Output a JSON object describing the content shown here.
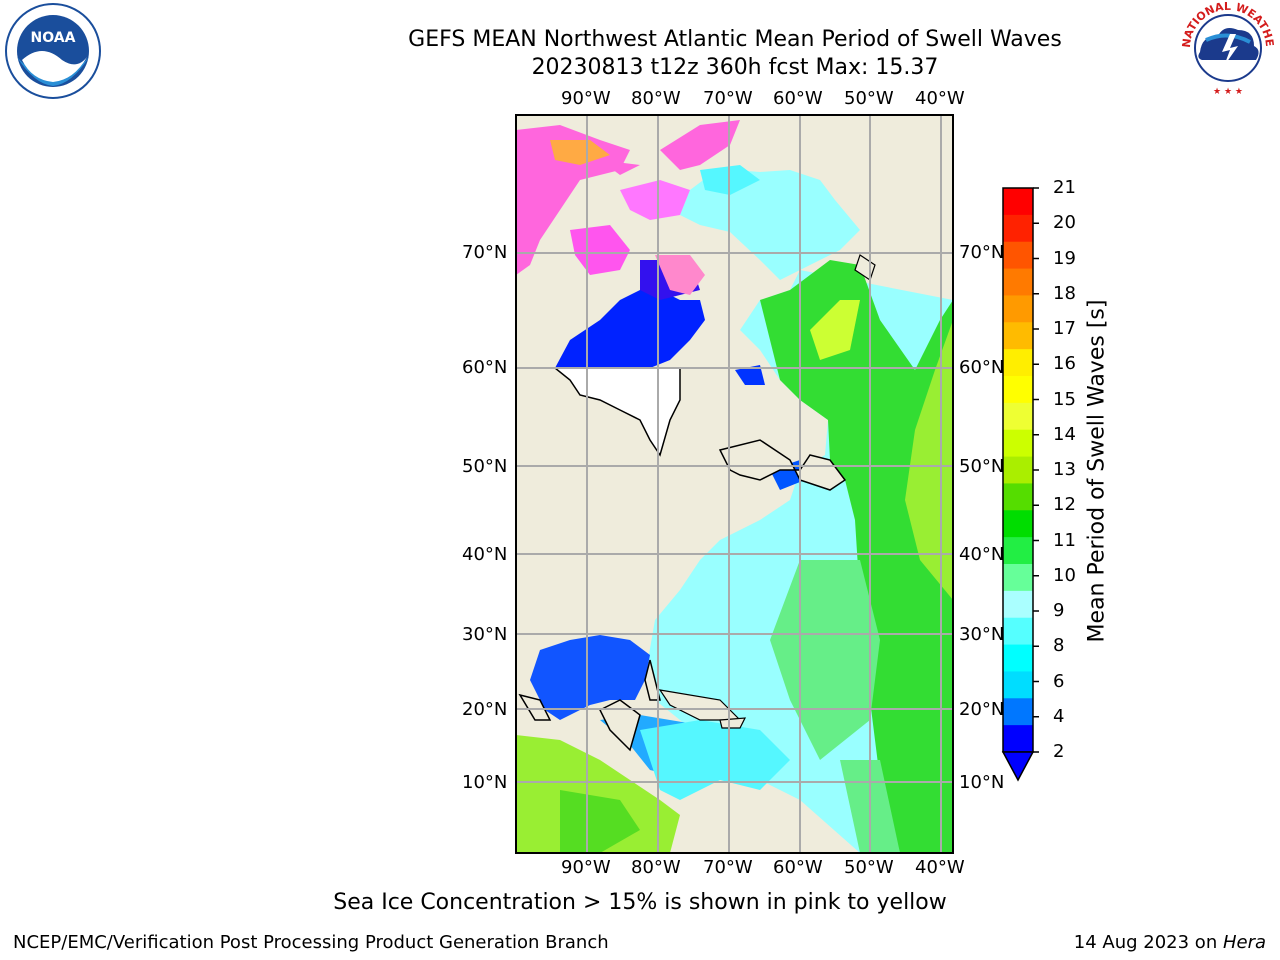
{
  "header": {
    "title": "GEFS MEAN Northwest Atlantic Mean Period of Swell Waves",
    "subtitle": "20230813 t12z 360h fcst   Max: 15.37"
  },
  "map": {
    "lon_labels": [
      "90°W",
      "80°W",
      "70°W",
      "60°W",
      "50°W",
      "40°W"
    ],
    "lat_labels": [
      "70°N",
      "60°N",
      "50°N",
      "40°N",
      "30°N",
      "20°N",
      "10°N"
    ]
  },
  "colorbar": {
    "title": "Mean Period of Swell Waves [s]",
    "ticks": [
      "21",
      "20",
      "19",
      "18",
      "17",
      "16",
      "15",
      "14",
      "13",
      "12",
      "11",
      "10",
      "9",
      "8",
      "6",
      "4",
      "2"
    ],
    "colors": [
      "#ff0000",
      "#ff2200",
      "#ff5500",
      "#ff7a00",
      "#ff9a00",
      "#ffbb00",
      "#ffee00",
      "#ffff00",
      "#eeff33",
      "#ccff00",
      "#aaee00",
      "#55dd00",
      "#00dd00",
      "#22ee44",
      "#66ff99",
      "#aaffff",
      "#55ffff",
      "#00ffff",
      "#00ddff",
      "#0077ff",
      "#0000ff"
    ],
    "land_color": "#efecdc",
    "ocean_colors": {
      "swell_light": "#99ffff",
      "swell_cyan": "#55f7ff",
      "swell_green": "#33dd33",
      "swell_lime": "#99ee33",
      "short": "#0022ff",
      "ice": "#ff66dd"
    }
  },
  "caption": "Sea Ice Concentration > 15% is shown in pink to yellow",
  "footer": {
    "left": "NCEP/EMC/Verification Post Processing Product Generation Branch",
    "right_date": "14 Aug 2023 on ",
    "right_host": "Hera"
  },
  "logos": {
    "noaa": "NOAA",
    "nws": "NATIONAL WEATHER SERVICE"
  }
}
